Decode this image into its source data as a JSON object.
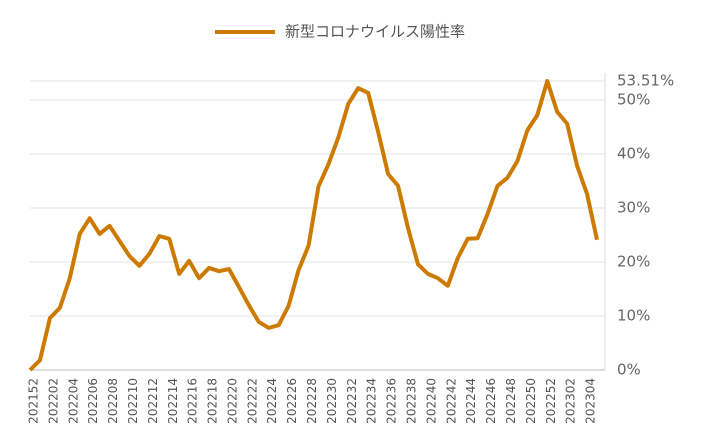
{
  "chart_data": {
    "type": "line",
    "categories": [
      "202152",
      null,
      "202202",
      null,
      "202204",
      null,
      "202206",
      null,
      "202208",
      null,
      "202210",
      null,
      "202212",
      null,
      "202214",
      null,
      "202216",
      null,
      "202218",
      null,
      "202220",
      null,
      "202222",
      null,
      "202224",
      null,
      "202226",
      null,
      "202228",
      null,
      "202230",
      null,
      "202232",
      null,
      "202234",
      null,
      "202236",
      null,
      "202238",
      null,
      "202240",
      null,
      "202242",
      null,
      "202244",
      null,
      "202246",
      null,
      "202248",
      null,
      "202250",
      null,
      "202252",
      null,
      "202302",
      null,
      "202304",
      null
    ],
    "series": [
      {
        "name": "新型コロナウイルス陽性率",
        "color": "#cc7a00",
        "values": [
          0,
          1.8,
          9.6,
          11.5,
          17,
          25.2,
          28.1,
          25.2,
          26.7,
          23.9,
          21.1,
          19.3,
          21.5,
          24.8,
          24.3,
          17.8,
          20.2,
          17,
          18.9,
          18.3,
          18.7,
          15.4,
          12,
          8.9,
          7.8,
          8.3,
          11.9,
          18.5,
          23,
          34,
          38.1,
          43.1,
          49.3,
          52.2,
          51.3,
          44.1,
          36.3,
          34.1,
          26.3,
          19.6,
          17.8,
          17,
          15.6,
          20.7,
          24.3,
          24.4,
          28.9,
          34.1,
          35.6,
          38.7,
          44.4,
          47.2,
          53.51,
          47.8,
          45.6,
          37.8,
          32.6,
          24.1
        ]
      }
    ],
    "ylim": [
      0,
      55
    ],
    "yticks": [
      {
        "value": 0,
        "label": "0%"
      },
      {
        "value": 10,
        "label": "10%"
      },
      {
        "value": 20,
        "label": "20%"
      },
      {
        "value": 30,
        "label": "30%"
      },
      {
        "value": 40,
        "label": "40%"
      },
      {
        "value": 50,
        "label": "50%"
      },
      {
        "value": 53.51,
        "label": "53.51%"
      }
    ],
    "grid": true,
    "legend": "top"
  }
}
